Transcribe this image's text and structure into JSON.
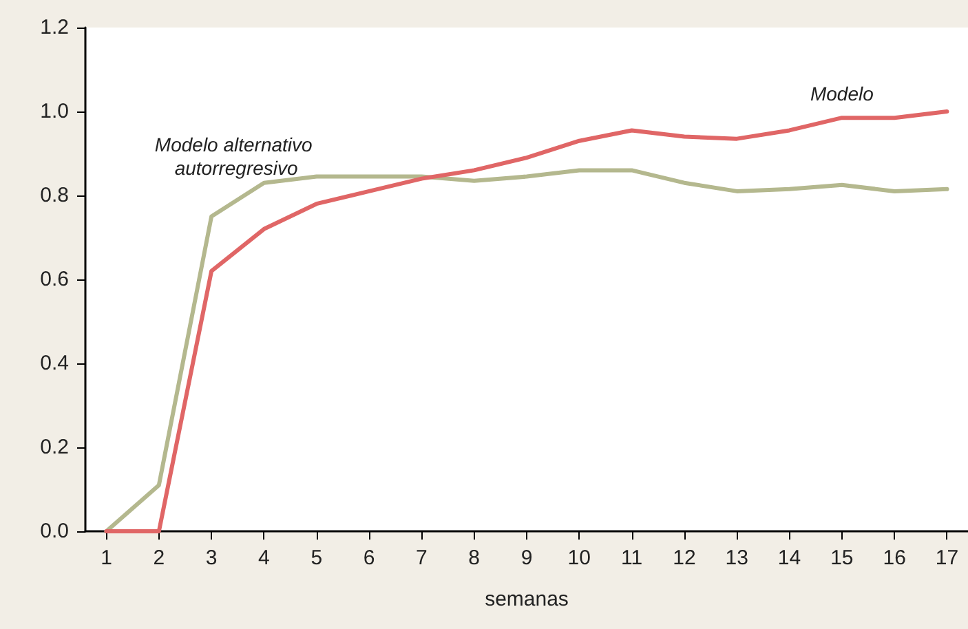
{
  "chart_data": {
    "type": "line",
    "xlabel": "semanas",
    "x": [
      1,
      2,
      3,
      4,
      5,
      6,
      7,
      8,
      9,
      10,
      11,
      12,
      13,
      14,
      15,
      16,
      17
    ],
    "series": [
      {
        "name": "Modelo alternativo autorregresivo",
        "color": "#b4b88e",
        "values": [
          0,
          0.11,
          0.75,
          0.83,
          0.845,
          0.845,
          0.845,
          0.835,
          0.845,
          0.86,
          0.86,
          0.83,
          0.81,
          0.815,
          0.825,
          0.81,
          0.815
        ]
      },
      {
        "name": "Modelo",
        "color": "#e06666",
        "values": [
          0,
          0,
          0.62,
          0.72,
          0.78,
          0.81,
          0.84,
          0.86,
          0.89,
          0.93,
          0.955,
          0.94,
          0.935,
          0.955,
          0.985,
          0.985,
          1.0
        ]
      }
    ],
    "xlim": [
      0.6,
      17.4
    ],
    "xticks": [
      1,
      2,
      3,
      4,
      5,
      6,
      7,
      8,
      9,
      10,
      11,
      12,
      13,
      14,
      15,
      16,
      17
    ],
    "ylim": [
      0,
      1.2
    ],
    "yticks": [
      {
        "value": 0,
        "label": "0.0"
      },
      {
        "value": 0.2,
        "label": "0.2"
      },
      {
        "value": 0.4,
        "label": "0.4"
      },
      {
        "value": 0.6,
        "label": "0.6"
      },
      {
        "value": 0.8,
        "label": "0.8"
      },
      {
        "value": 1.0,
        "label": "1.0"
      },
      {
        "value": 1.2,
        "label": "1.2"
      }
    ],
    "grid": false,
    "legend": false,
    "marker": "none",
    "line_style": "solid"
  }
}
